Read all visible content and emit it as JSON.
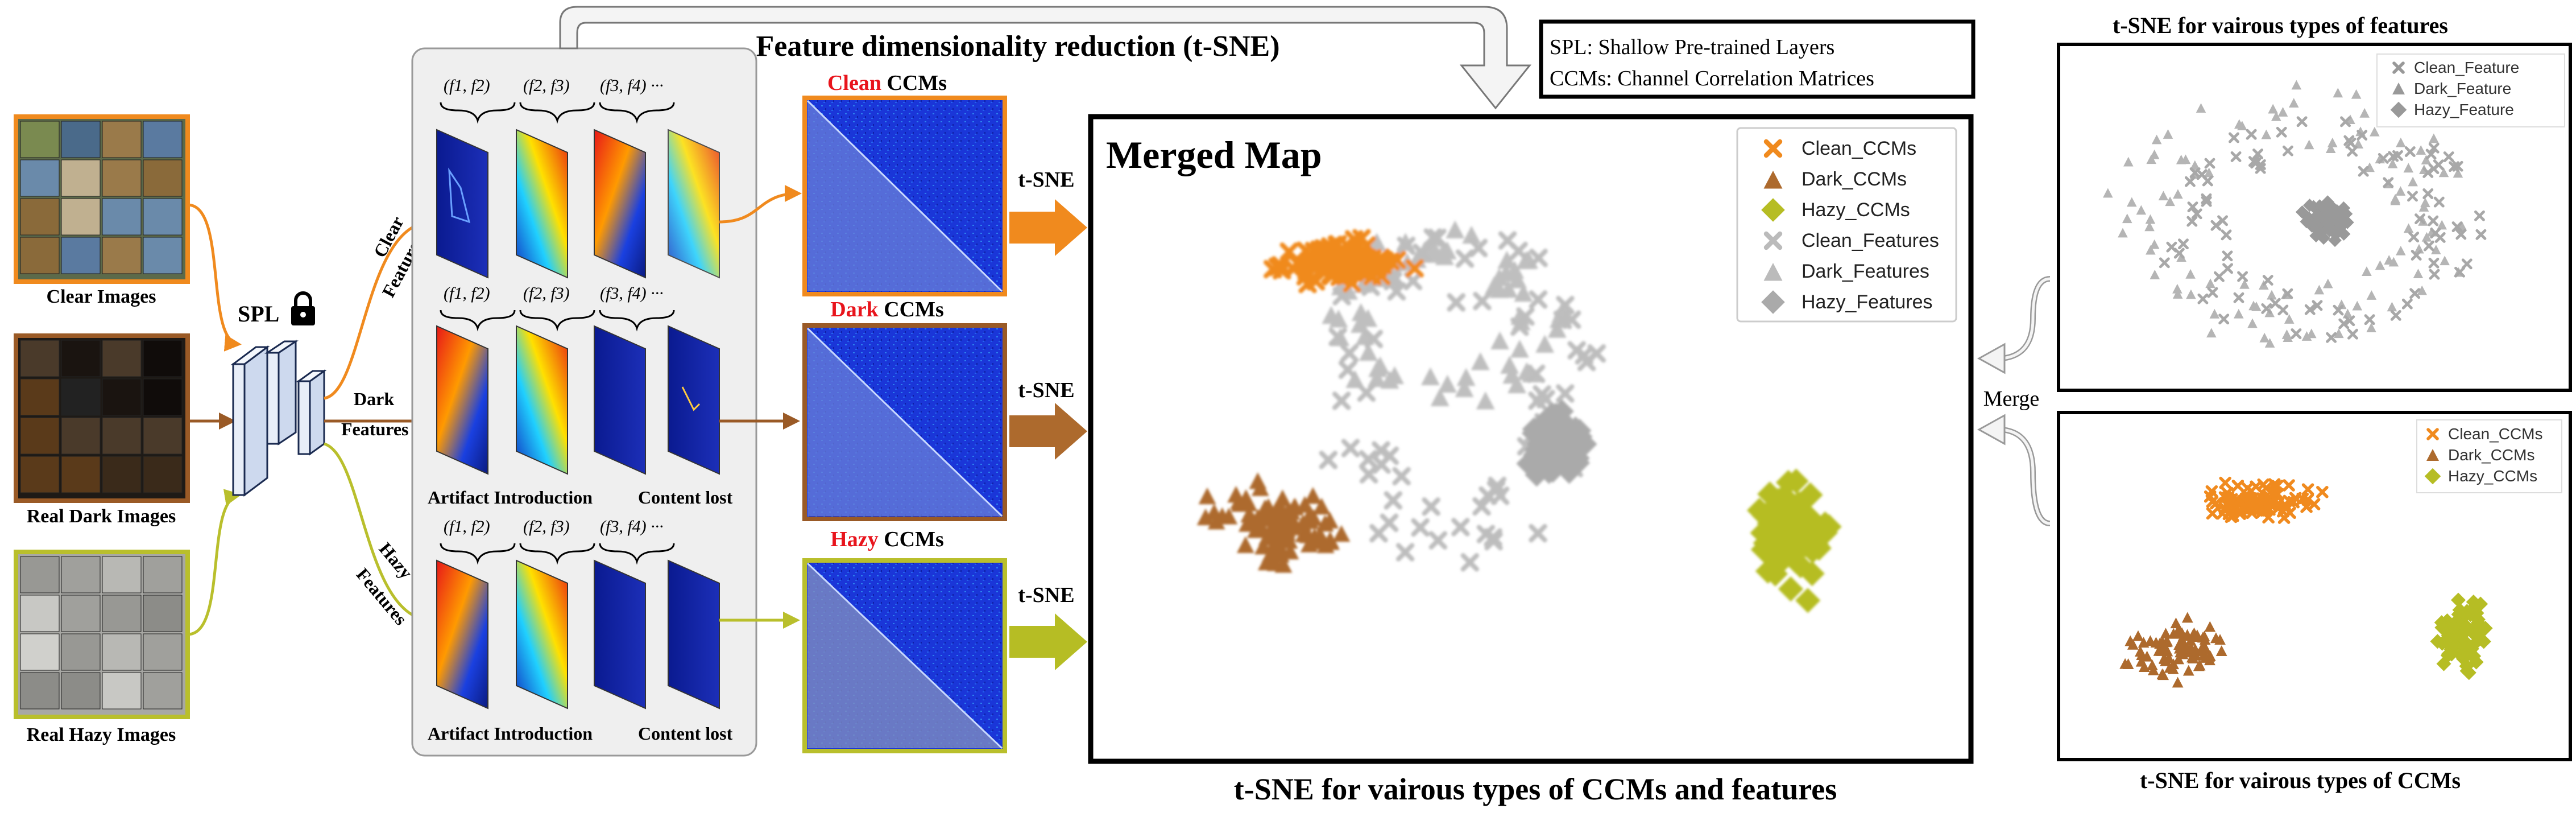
{
  "title": "Feature dimensionality reduction (t-SNE)",
  "abbr": {
    "spl": "SPL: Shallow Pre-trained Layers",
    "ccms": "CCMs: Channel Correlation Matrices"
  },
  "inputs": [
    {
      "label": "Clear Images",
      "color": "#f08a1e"
    },
    {
      "label": "Real Dark Images",
      "color": "#9a5a26"
    },
    {
      "label": "Real Hazy Images",
      "color": "#b9bf2c"
    }
  ],
  "spl_label": "SPL",
  "branch_labels": {
    "clear": [
      "Clear",
      "Features"
    ],
    "dark": [
      "Dark",
      "Features"
    ],
    "hazy": [
      "Hazy",
      "Features"
    ]
  },
  "pair_labels": [
    "(f1, f2)",
    "(f2, f3)",
    "(f3, f4) ···"
  ],
  "row_captions": {
    "dark": [
      "Artifact Introduction",
      "Content lost"
    ],
    "hazy": [
      "Artifact Introduction",
      "Content lost"
    ]
  },
  "ccm_titles": [
    {
      "word": "Clean",
      "rest": " CCMs",
      "color": "#e8141c"
    },
    {
      "word": "Dark",
      "rest": " CCMs",
      "color": "#e8141c"
    },
    {
      "word": "Hazy",
      "rest": " CCMs",
      "color": "#e8141c"
    }
  ],
  "tsne_label": "t-SNE",
  "merged": {
    "title": "Merged Map",
    "caption": "t-SNE for vairous types of CCMs and features",
    "legend": [
      "Clean_CCMs",
      "Dark_CCMs",
      "Hazy_CCMs",
      "Clean_Features",
      "Dark_Features",
      "Hazy_Features"
    ]
  },
  "merge_label": "Merge",
  "panel_features": {
    "title": "t-SNE for vairous types of features",
    "legend": [
      "Clean_Feature",
      "Dark_Feature",
      "Hazy_Feature"
    ]
  },
  "panel_ccms": {
    "caption": "t-SNE for vairous types of CCMs",
    "legend": [
      "Clean_CCMs",
      "Dark_CCMs",
      "Hazy_CCMs"
    ]
  },
  "colors": {
    "clean": "#f08a1e",
    "dark": "#ad6a2d",
    "hazy": "#b6bd24",
    "gray": "#aaaaaa",
    "ccm_blue": "#1838d8"
  }
}
